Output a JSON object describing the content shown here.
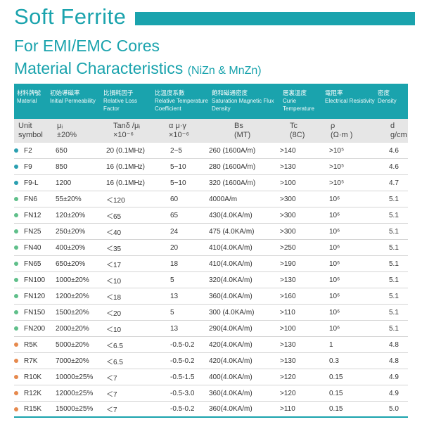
{
  "page": {
    "title": "Soft Ferrite",
    "subtitle1": "For EMI/EMC Cores",
    "subtitle2_main": "Material Characteristics",
    "subtitle2_small": "(NiZn & MnZn)"
  },
  "colors": {
    "accent": "#1aa3ad",
    "dot_nizn": "#2a9fb0",
    "dot_mnzn_green": "#5fbf8a",
    "dot_mnzn_orange": "#e6894d"
  },
  "header": [
    {
      "cn": "材料牌號",
      "en": "Material"
    },
    {
      "cn": "初始導磁率",
      "en": "Initial Permeability"
    },
    {
      "cn": "比損耗因子",
      "en": "Relative Loss Factor"
    },
    {
      "cn": "比溫度系數",
      "en": "Relative Temperature Coefficient"
    },
    {
      "cn": "飽和磁通密度",
      "en": "Saturation Magnetic Flux Density"
    },
    {
      "cn": "居裏溫度",
      "en": "Curie Temperature"
    },
    {
      "cn": "電阻率",
      "en": "Electrical Resistivity"
    },
    {
      "cn": "密度",
      "en": "Density"
    }
  ],
  "units": [
    {
      "line1": "Unit",
      "line2": "symbol"
    },
    {
      "line1": "μᵢ",
      "line2": "±20%"
    },
    {
      "line1": "Tanδ /μᵢ",
      "line2": "×10⁻⁶"
    },
    {
      "line1": "α μ·γ",
      "line2": "×10⁻⁶"
    },
    {
      "line1": "Bs",
      "line2": "(MT)"
    },
    {
      "line1": "Tc",
      "line2": "(8C)"
    },
    {
      "line1": "ρ",
      "line2": "(Ω·m )"
    },
    {
      "line1": "d",
      "line2": "g/cm"
    }
  ],
  "rows": [
    {
      "dot": "nizn",
      "cells": [
        "F2",
        "650",
        "20 (0.1MHz)",
        "2~5",
        "260 (1600A/m)",
        ">140",
        ">10⁵",
        "4.6"
      ]
    },
    {
      "dot": "nizn",
      "cells": [
        "F9",
        "850",
        "16 (0.1MHz)",
        "5~10",
        "280 (1600A/m)",
        ">130",
        ">10⁵",
        "4.6"
      ]
    },
    {
      "dot": "nizn",
      "cells": [
        "F9-L",
        "1200",
        "16 (0.1MHz)",
        "5~10",
        "320 (1600A/m)",
        ">100",
        ">10⁵",
        "4.7"
      ]
    },
    {
      "dot": "green",
      "cells": [
        "FN6",
        "55±20%",
        "＜120",
        "60",
        "4000A/m",
        ">300",
        "10⁶",
        "5.1"
      ]
    },
    {
      "dot": "green",
      "cells": [
        "FN12",
        "120±20%",
        "＜65",
        "65",
        "430(4.0KA/m)",
        ">300",
        "10⁶",
        "5.1"
      ]
    },
    {
      "dot": "green",
      "cells": [
        "FN25",
        "250±20%",
        "＜40",
        "24",
        "475 (4.0KA/m)",
        ">300",
        "10⁶",
        "5.1"
      ]
    },
    {
      "dot": "green",
      "cells": [
        "FN40",
        "400±20%",
        "＜35",
        "20",
        "410(4.0KA/m)",
        ">250",
        "10⁶",
        "5.1"
      ]
    },
    {
      "dot": "green",
      "cells": [
        "FN65",
        "650±20%",
        "＜17",
        "18",
        "410(4.0KA/m)",
        ">190",
        "10⁶",
        "5.1"
      ]
    },
    {
      "dot": "green",
      "cells": [
        "FN100",
        "1000±20%",
        "＜10",
        "5",
        "320(4.0KA/m)",
        ">130",
        "10⁶",
        "5.1"
      ]
    },
    {
      "dot": "green",
      "cells": [
        "FN120",
        "1200±20%",
        "＜18",
        "13",
        "360(4.0KA/m)",
        ">160",
        "10⁶",
        "5.1"
      ]
    },
    {
      "dot": "green",
      "cells": [
        "FN150",
        "1500±20%",
        "＜20",
        "5",
        "300 (4.0KA/m)",
        ">110",
        "10⁶",
        "5.1"
      ]
    },
    {
      "dot": "green",
      "cells": [
        "FN200",
        "2000±20%",
        "＜10",
        "13",
        "290(4.0KA/m)",
        ">100",
        "10⁶",
        "5.1"
      ]
    },
    {
      "dot": "orange",
      "cells": [
        "R5K",
        "5000±20%",
        "＜6.5",
        "-0.5-0.2",
        "420(4.0KA/m)",
        ">130",
        "1",
        "4.8"
      ]
    },
    {
      "dot": "orange",
      "cells": [
        "R7K",
        "7000±20%",
        "＜6.5",
        "-0.5-0.2",
        "420(4.0KA/m)",
        ">130",
        "0.3",
        "4.8"
      ]
    },
    {
      "dot": "orange",
      "cells": [
        "R10K",
        "10000±25%",
        "＜7",
        "-0.5-1.5",
        "400(4.0KA/m)",
        ">120",
        "0.15",
        "4.9"
      ]
    },
    {
      "dot": "orange",
      "cells": [
        "R12K",
        "12000±25%",
        "＜7",
        "-0.5-3.0",
        "360(4.0KA/m)",
        ">120",
        "0.15",
        "4.9"
      ]
    },
    {
      "dot": "orange",
      "cells": [
        "R15K",
        "15000±25%",
        "＜7",
        "-0.5-0.2",
        "360(4.0KA/m)",
        ">110",
        "0.15",
        "5.0"
      ]
    }
  ]
}
